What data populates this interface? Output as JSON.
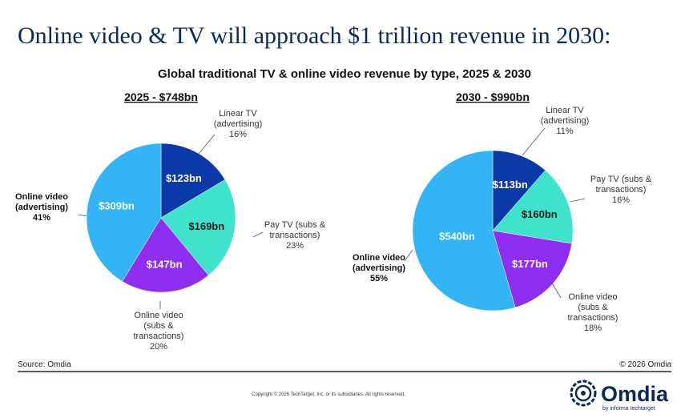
{
  "title": "Online video & TV will approach $1 trillion revenue in 2030:",
  "subtitle": "Global traditional TV & online video revenue by type, 2025 & 2030",
  "chart_data": [
    {
      "type": "pie",
      "title": "2025 - $748bn",
      "categories": [
        "Linear TV (advertising)",
        "Pay TV (subs & transactions)",
        "Online video (subs & transactions)",
        "Online video (advertising)"
      ],
      "values": [
        123,
        169,
        147,
        309
      ],
      "value_labels": [
        "$123bn",
        "$169bn",
        "$147bn",
        "$309bn"
      ],
      "shares": [
        16,
        23,
        20,
        41
      ],
      "share_labels": [
        "16%",
        "23%",
        "20%",
        "41%"
      ],
      "colors": [
        "#0b3aa8",
        "#3fe3cc",
        "#8f2ef0",
        "#33b4f5"
      ]
    },
    {
      "type": "pie",
      "title": "2030 - $990bn",
      "categories": [
        "Linear TV (advertising)",
        "Pay TV (subs & transactions)",
        "Online video (subs & transactions)",
        "Online video (advertising)"
      ],
      "values": [
        113,
        160,
        177,
        540
      ],
      "value_labels": [
        "$113bn",
        "$160bn",
        "$177bn",
        "$540bn"
      ],
      "shares": [
        11,
        16,
        18,
        55
      ],
      "share_labels": [
        "11%",
        "16%",
        "18%",
        "55%"
      ],
      "colors": [
        "#0b3aa8",
        "#3fe3cc",
        "#8f2ef0",
        "#33b4f5"
      ]
    }
  ],
  "source": "Source: Omdia",
  "credit": "© 2026 Omdia",
  "copyright": "Copyright © 2026 TechTarget, Inc. or its subsidiaries. All rights reserved.",
  "logo": "Omdia",
  "logo_tagline": "by informa techtarget"
}
